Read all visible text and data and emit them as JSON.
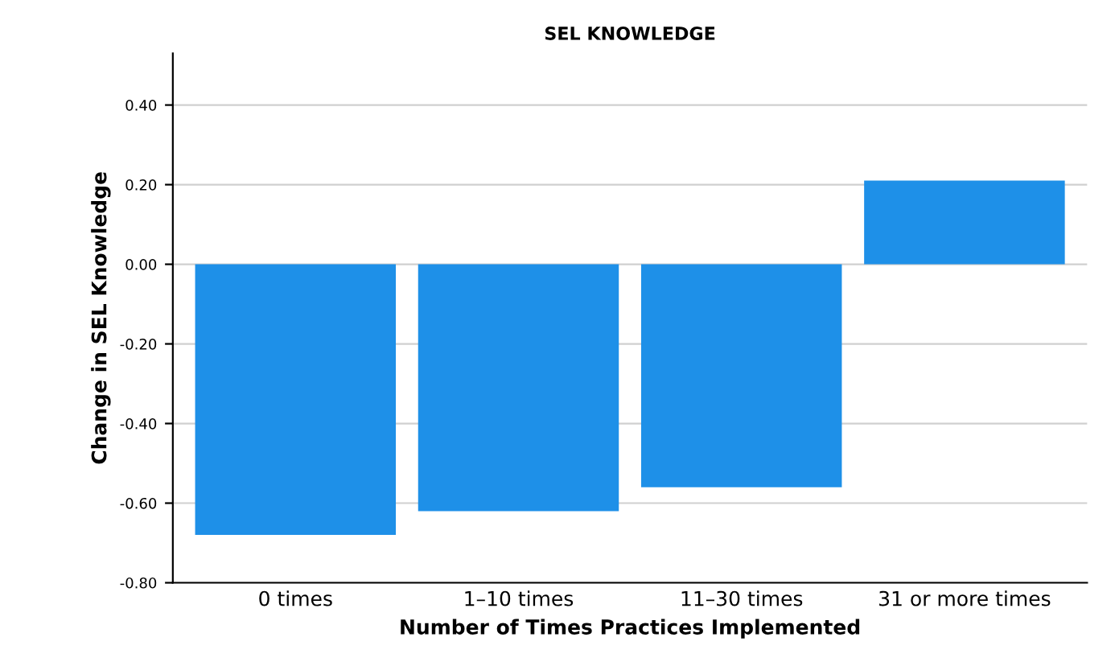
{
  "chart_data": {
    "type": "bar",
    "title": "SEL KNOWLEDGE",
    "xlabel": "Number of Times Practices Implemented",
    "ylabel": "Change in SEL Knowledge",
    "categories": [
      "0 times",
      "1–10 times",
      "11–30 times",
      "31 or more times"
    ],
    "values": [
      -0.68,
      -0.62,
      -0.56,
      0.21
    ],
    "color": "#1e90e8",
    "ylim": [
      -0.8,
      0.53
    ],
    "yticks": [
      {
        "value": -0.8,
        "label": "-0.80"
      },
      {
        "value": -0.6,
        "label": "-0.60"
      },
      {
        "value": -0.4,
        "label": "-0.40"
      },
      {
        "value": -0.2,
        "label": "-0.20"
      },
      {
        "value": 0.0,
        "label": "0.00"
      },
      {
        "value": 0.2,
        "label": "0.20"
      },
      {
        "value": 0.4,
        "label": "0.40"
      }
    ],
    "grid": "y",
    "legend": false
  }
}
